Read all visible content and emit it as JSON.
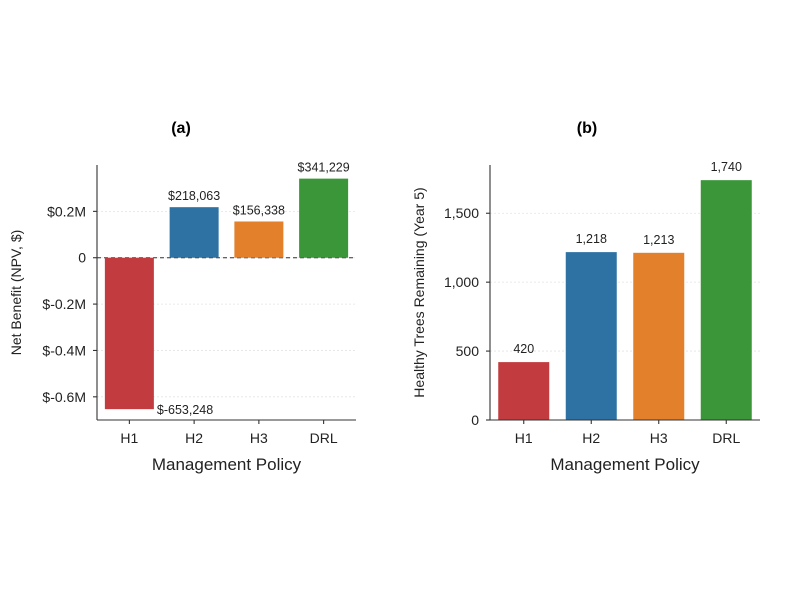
{
  "chart_data": [
    {
      "type": "bar",
      "title": "(a)",
      "xlabel": "Management Policy",
      "ylabel": "Net Benefit (NPV, $)",
      "categories": [
        "H1",
        "H2",
        "H3",
        "DRL"
      ],
      "values": [
        -653248,
        218063,
        156338,
        341229
      ],
      "value_labels": [
        "$-653,248",
        "$218,063",
        "$156,338",
        "$341,229"
      ],
      "colors": [
        "#c23b3f",
        "#2e72a3",
        "#e2802c",
        "#3a9638"
      ],
      "yticks": [
        -600000,
        -400000,
        -200000,
        0,
        200000
      ],
      "ytick_labels": [
        "$-0.6M",
        "$-0.4M",
        "$-0.2M",
        "0",
        "$0.2M"
      ],
      "ylim": [
        -700000,
        400000
      ],
      "zero_line": "dashed",
      "grid": "horizontal dotted"
    },
    {
      "type": "bar",
      "title": "(b)",
      "xlabel": "Management Policy",
      "ylabel": "Healthy Trees Remaining (Year 5)",
      "categories": [
        "H1",
        "H2",
        "H3",
        "DRL"
      ],
      "values": [
        420,
        1218,
        1213,
        1740
      ],
      "value_labels": [
        "420",
        "1,218",
        "1,213",
        "1,740"
      ],
      "colors": [
        "#c23b3f",
        "#2e72a3",
        "#e2802c",
        "#3a9638"
      ],
      "yticks": [
        0,
        500,
        1000,
        1500
      ],
      "ytick_labels": [
        "0",
        "500",
        "1,000",
        "1,500"
      ],
      "ylim": [
        0,
        1850
      ],
      "grid": "horizontal dotted"
    }
  ]
}
